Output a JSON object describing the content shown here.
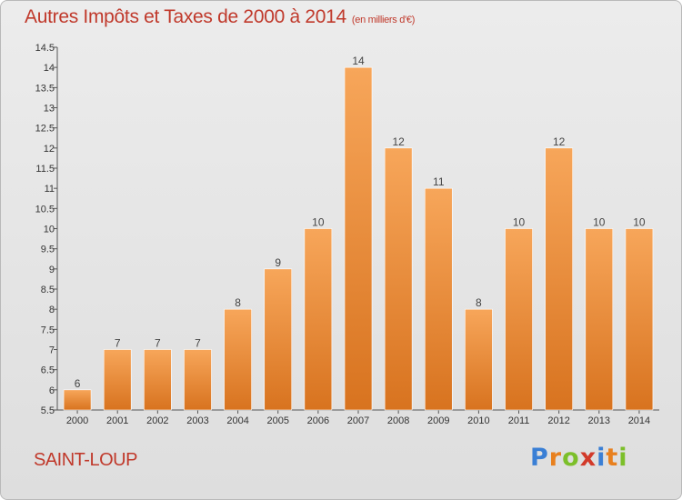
{
  "header": {
    "title": "Autres Impôts et Taxes de 2000 à 2014",
    "unit": "(en milliers d'€)"
  },
  "footer": {
    "commune": "SAINT-LOUP",
    "logo_text": "Proxiti"
  },
  "colors": {
    "bar_light": "#f7a65a",
    "bar_dark": "#d8731f",
    "title": "#c0392b",
    "logo": [
      "#3a7fd5",
      "#e8801e",
      "#7cbf2a",
      "#d23a2a",
      "#3a7fd5",
      "#e8801e",
      "#7cbf2a"
    ]
  },
  "chart_data": {
    "type": "bar",
    "title": "Autres Impôts et Taxes de 2000 à 2014",
    "subtitle": "(en milliers d'€)",
    "categories": [
      "2000",
      "2001",
      "2002",
      "2003",
      "2004",
      "2005",
      "2006",
      "2007",
      "2008",
      "2009",
      "2010",
      "2011",
      "2012",
      "2013",
      "2014"
    ],
    "values": [
      6,
      7,
      7,
      7,
      8,
      9,
      10,
      14,
      12,
      11,
      8,
      10,
      12,
      10,
      10
    ],
    "ylim": [
      5.5,
      14.5
    ],
    "yticks": [
      "5.5",
      "6",
      "6.5",
      "7",
      "7.5",
      "8",
      "8.5",
      "9",
      "9.5",
      "10",
      "10.5",
      "11",
      "11.5",
      "12",
      "12.5",
      "13",
      "13.5",
      "14",
      "14.5"
    ],
    "grid": false,
    "legend": "none"
  }
}
